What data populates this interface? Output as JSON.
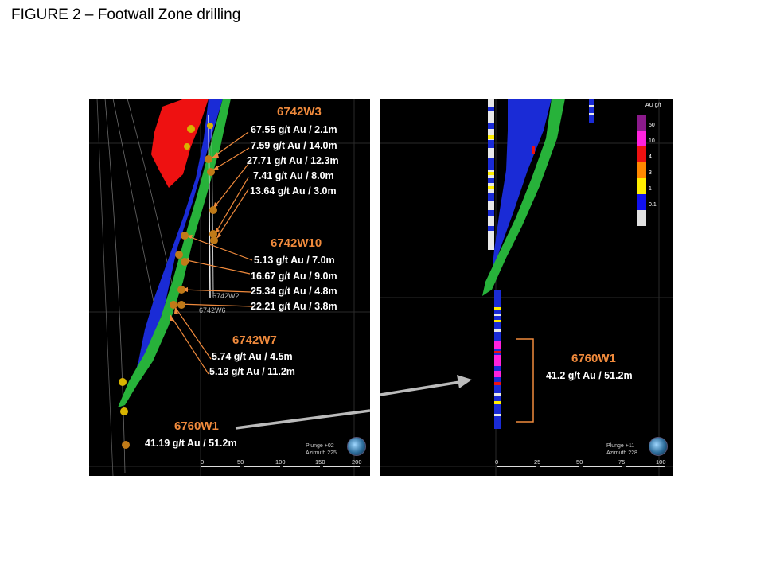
{
  "figure_title": "FIGURE 2 – Footwall Zone drilling",
  "left_panel": {
    "holes": {
      "w3": {
        "name": "6742W3",
        "intercepts": [
          "67.55 g/t Au / 2.1m",
          "7.59 g/t Au / 14.0m",
          "27.71 g/t Au / 12.3m",
          "7.41 g/t Au / 8.0m",
          "13.64 g/t Au / 3.0m"
        ]
      },
      "w10": {
        "name": "6742W10",
        "intercepts": [
          "5.13 g/t Au / 7.0m",
          "16.67 g/t Au / 9.0m",
          "25.34 g/t Au / 4.8m",
          "22.21 g/t Au / 3.8m"
        ]
      },
      "w7": {
        "name": "6742W7",
        "intercepts": [
          "5.74 g/t Au / 4.5m",
          "5.13 g/t Au / 11.2m"
        ]
      },
      "w1": {
        "name": "6760W1",
        "intercepts": [
          "41.19 g/t Au / 51.2m"
        ]
      }
    },
    "trace_labels": [
      "6742W2",
      "6742W6"
    ],
    "view": {
      "plunge": "Plunge +02",
      "azimuth": "Azimuth 225"
    },
    "scale_ticks": [
      "0",
      "50",
      "100",
      "150",
      "200"
    ]
  },
  "right_panel": {
    "hole": {
      "name": "6760W1",
      "intercept": "41.2 g/t Au / 51.2m"
    },
    "view": {
      "plunge": "Plunge +11",
      "azimuth": "Azimuth 228"
    },
    "scale_ticks": [
      "0",
      "25",
      "50",
      "75",
      "100"
    ],
    "legend": {
      "title": "AU g/t",
      "bins": [
        {
          "label": "50",
          "color": "#8b1a8b"
        },
        {
          "label": "10",
          "color": "#ff22dd"
        },
        {
          "label": "4",
          "color": "#ee1111"
        },
        {
          "label": "3",
          "color": "#ff8800"
        },
        {
          "label": "1",
          "color": "#ffee00"
        },
        {
          "label": "0.1",
          "color": "#1111ee"
        },
        {
          "label": "",
          "color": "#e0e0e0"
        }
      ]
    }
  },
  "colors": {
    "accent_orange": "#f08a3c",
    "ore_green": "#27b23a",
    "ore_blue": "#1a2bd6",
    "ore_red": "#ee1111"
  }
}
